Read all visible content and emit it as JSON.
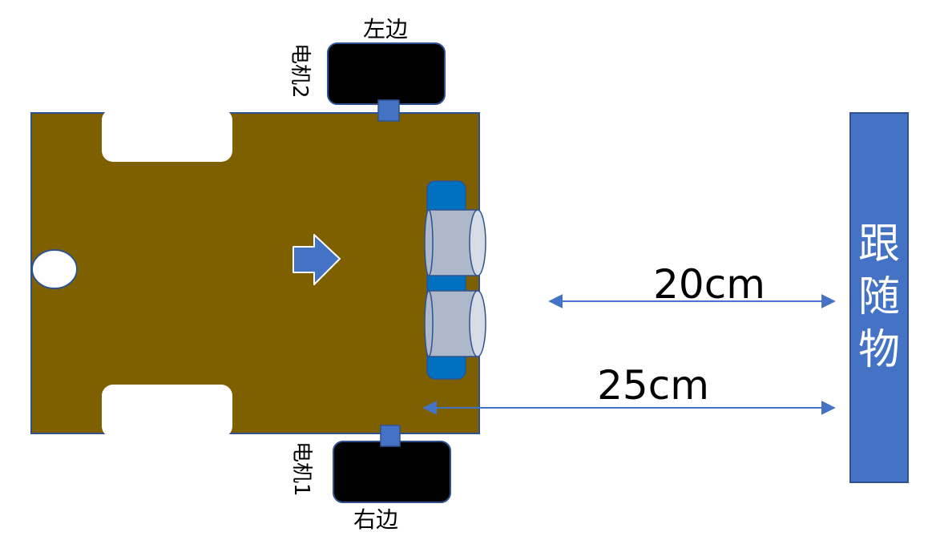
{
  "labels": {
    "left_side": "左边",
    "right_side": "右边",
    "motor_top": "电机2",
    "motor_bottom": "电机1",
    "target": "跟随物"
  },
  "distances": {
    "near": "20cm",
    "far": "25cm"
  },
  "colors": {
    "chassis": "#7f6000",
    "chassis_border": "#2f528f",
    "wheel": "#000000",
    "connector": "#4472c4",
    "sensor_board": "#0070c0",
    "sensor_cylinder": "#adb9ca",
    "arrow": "#4472c4",
    "target_bar": "#4472c4",
    "target_text": "#ffffff"
  }
}
